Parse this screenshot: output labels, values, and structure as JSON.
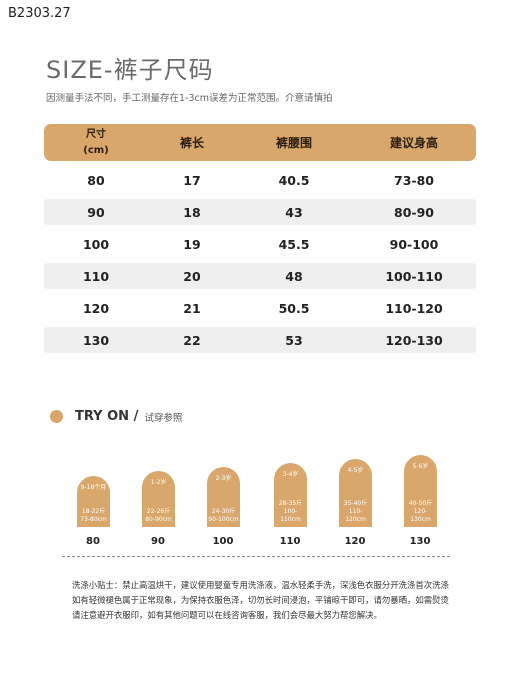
{
  "product_code": "B2303.27",
  "title": "SIZE-裤子尺码",
  "subtitle": "因测量手法不同，手工测量存在1-3cm误差为正常范围。介意请慎拍",
  "table": {
    "headers": {
      "size_line1": "尺寸",
      "size_line2": "(cm)",
      "pants_length": "裤长",
      "waist": "裤腰围",
      "height": "建议身高"
    },
    "rows": [
      {
        "size": "80",
        "length": "17",
        "waist": "40.5",
        "height": "73-80"
      },
      {
        "size": "90",
        "length": "18",
        "waist": "43",
        "height": "80-90"
      },
      {
        "size": "100",
        "length": "19",
        "waist": "45.5",
        "height": "90-100"
      },
      {
        "size": "110",
        "length": "20",
        "waist": "48",
        "height": "100-110"
      },
      {
        "size": "120",
        "length": "21",
        "waist": "50.5",
        "height": "110-120"
      },
      {
        "size": "130",
        "length": "22",
        "waist": "53",
        "height": "120-130"
      }
    ]
  },
  "try_on": {
    "label_en": "TRY ON /",
    "label_cn": "试穿参照",
    "figures": [
      {
        "age": "9-18个月",
        "weight": "18-22斤",
        "height": "73-80cm",
        "size": "80"
      },
      {
        "age": "1-2岁",
        "weight": "22-26斤",
        "height": "80-90cm",
        "size": "90"
      },
      {
        "age": "2-3岁",
        "weight": "24-30斤",
        "height": "90-100cm",
        "size": "100"
      },
      {
        "age": "3-4岁",
        "weight": "28-35斤",
        "height": "100-110cm",
        "size": "110"
      },
      {
        "age": "4-5岁",
        "weight": "35-40斤",
        "height": "110-120cm",
        "size": "120"
      },
      {
        "age": "5-6岁",
        "weight": "40-50斤",
        "height": "120-130cm",
        "size": "130"
      }
    ]
  },
  "care_note": "洗涤小贴士：禁止高温烘干，建议使用婴童专用洗涤液，温水轻柔手洗，深浅色衣服分开洗涤首次洗涤如有轻微褪色属于正常现象，为保持衣服色泽，切勿长时间浸泡，平铺晾干即可，请勿暴晒，如需熨烫请注意避开衣服印，如有其他问题可以在线咨询客服，我们会尽最大努力帮您解决。",
  "colors": {
    "accent": "#d9a66b",
    "row_alt": "#efefef"
  }
}
